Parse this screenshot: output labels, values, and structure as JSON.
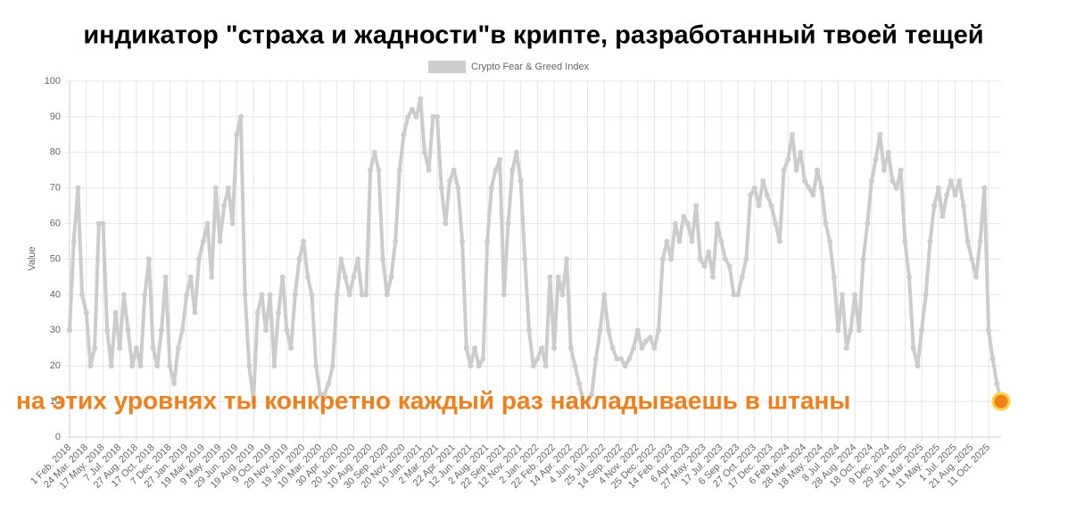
{
  "chart_data": {
    "type": "line",
    "title": "индикатор \"страха и жадности\"в крипте, разработанный твоей тещей",
    "annotation": "на этих уровнях ты конкретно каждый раз накладываешь в штаны",
    "ylabel": "Value",
    "ylim": [
      0,
      100
    ],
    "yticks": [
      0,
      10,
      20,
      30,
      40,
      50,
      60,
      70,
      80,
      90,
      100
    ],
    "grid": true,
    "legend": "top",
    "highlight_color": "#f07f1a",
    "categories": [
      "1 Feb. 2018",
      null,
      null,
      null,
      "24 Mar. 2018",
      null,
      null,
      null,
      "17 May. 2018",
      null,
      null,
      null,
      "7 Jul. 2018",
      null,
      null,
      null,
      "27 Aug. 2018",
      null,
      null,
      null,
      "17 Oct. 2018",
      null,
      null,
      null,
      "7 Dec. 2018",
      null,
      null,
      null,
      "27 Jan. 2019",
      null,
      null,
      null,
      "19 Mar. 2019",
      null,
      null,
      null,
      "9 May. 2019",
      null,
      null,
      null,
      "29 Jun. 2019",
      null,
      null,
      null,
      "19 Aug. 2019",
      null,
      null,
      null,
      "9 Oct. 2019",
      null,
      null,
      null,
      "29 Nov. 2019",
      null,
      null,
      null,
      "19 Jan. 2020",
      null,
      null,
      null,
      "10 Mar. 2020",
      null,
      null,
      null,
      "30 Apr. 2020",
      null,
      null,
      null,
      "20 Jun. 2020",
      null,
      null,
      null,
      "10 Aug. 2020",
      null,
      null,
      null,
      "30 Sep. 2020",
      null,
      null,
      null,
      "20 Nov. 2020",
      null,
      null,
      null,
      "10 Jan. 2021",
      null,
      null,
      null,
      "2 Mar. 2021",
      null,
      null,
      null,
      "22 Apr. 2021",
      null,
      null,
      null,
      "12 Jun. 2021",
      null,
      null,
      null,
      "2 Aug. 2021",
      null,
      null,
      null,
      "22 Sep. 2021",
      null,
      null,
      null,
      "12 Nov. 2021",
      null,
      null,
      null,
      "2 Jan. 2022",
      null,
      null,
      null,
      "22 Feb. 2022",
      null,
      null,
      null,
      "14 Apr. 2022",
      null,
      null,
      null,
      "4 Jun. 2022",
      null,
      null,
      null,
      "25 Jul. 2022",
      null,
      null,
      null,
      "14 Sep. 2022",
      null,
      null,
      null,
      "4 Nov. 2022",
      null,
      null,
      null,
      "25 Dec. 2022",
      null,
      null,
      null,
      "14 Feb. 2023",
      null,
      null,
      null,
      "6 Apr. 2023",
      null,
      null,
      null,
      "27 May. 2023",
      null,
      null,
      null,
      "17 Jul. 2023",
      null,
      null,
      null,
      "6 Sep. 2023",
      null,
      null,
      null,
      "27 Oct. 2023",
      null,
      null,
      null,
      "17 Dec. 2023",
      null,
      null,
      null,
      "6 Feb. 2024",
      null,
      null,
      null,
      "28 Mar. 2024",
      null,
      null,
      null,
      "18 May. 2024",
      null,
      null,
      null,
      "8 Jul. 2024",
      null,
      null,
      null,
      "28 Aug. 2024",
      null,
      null,
      null,
      "18 Oct. 2024",
      null,
      null,
      null,
      "9 Dec. 2024",
      null,
      null,
      null,
      "29 Jan. 2025",
      null,
      null,
      null,
      "21 Mar. 2025",
      null,
      null,
      null,
      "11 May. 2025",
      null,
      null,
      null,
      "1 Jul. 2025",
      null,
      null,
      null,
      "21 Aug. 2025",
      null,
      null,
      null,
      "11 Oct. 2025",
      null,
      null,
      null
    ],
    "series": [
      {
        "name": "Crypto Fear & Greed Index",
        "color": "#cccccc",
        "values": [
          30,
          55,
          70,
          40,
          35,
          20,
          25,
          60,
          60,
          30,
          20,
          35,
          25,
          40,
          30,
          20,
          25,
          20,
          40,
          50,
          25,
          20,
          30,
          45,
          20,
          15,
          25,
          30,
          40,
          45,
          35,
          50,
          55,
          60,
          45,
          70,
          55,
          65,
          70,
          60,
          85,
          90,
          40,
          20,
          10,
          35,
          40,
          30,
          40,
          20,
          35,
          45,
          30,
          25,
          40,
          50,
          55,
          45,
          40,
          20,
          12,
          12,
          15,
          20,
          40,
          50,
          45,
          40,
          45,
          50,
          40,
          40,
          75,
          80,
          75,
          50,
          40,
          45,
          55,
          75,
          85,
          90,
          92,
          90,
          95,
          80,
          75,
          90,
          90,
          70,
          60,
          72,
          75,
          70,
          55,
          25,
          20,
          25,
          20,
          22,
          55,
          70,
          75,
          78,
          40,
          60,
          75,
          80,
          72,
          50,
          30,
          20,
          22,
          25,
          20,
          45,
          25,
          45,
          40,
          50,
          25,
          20,
          15,
          10,
          10,
          12,
          22,
          30,
          40,
          30,
          25,
          22,
          22,
          20,
          22,
          25,
          30,
          25,
          27,
          28,
          25,
          30,
          50,
          55,
          50,
          60,
          55,
          62,
          60,
          55,
          65,
          50,
          48,
          52,
          45,
          60,
          55,
          50,
          48,
          40,
          40,
          45,
          50,
          68,
          70,
          65,
          72,
          68,
          65,
          60,
          55,
          75,
          78,
          85,
          75,
          80,
          72,
          70,
          68,
          75,
          70,
          60,
          55,
          45,
          30,
          40,
          25,
          30,
          40,
          30,
          50,
          60,
          72,
          78,
          85,
          75,
          80,
          72,
          70,
          75,
          55,
          45,
          25,
          20,
          30,
          40,
          55,
          65,
          70,
          62,
          68,
          72,
          68,
          72,
          65,
          55,
          50,
          45,
          55,
          70,
          30,
          22,
          15,
          10
        ]
      }
    ]
  }
}
